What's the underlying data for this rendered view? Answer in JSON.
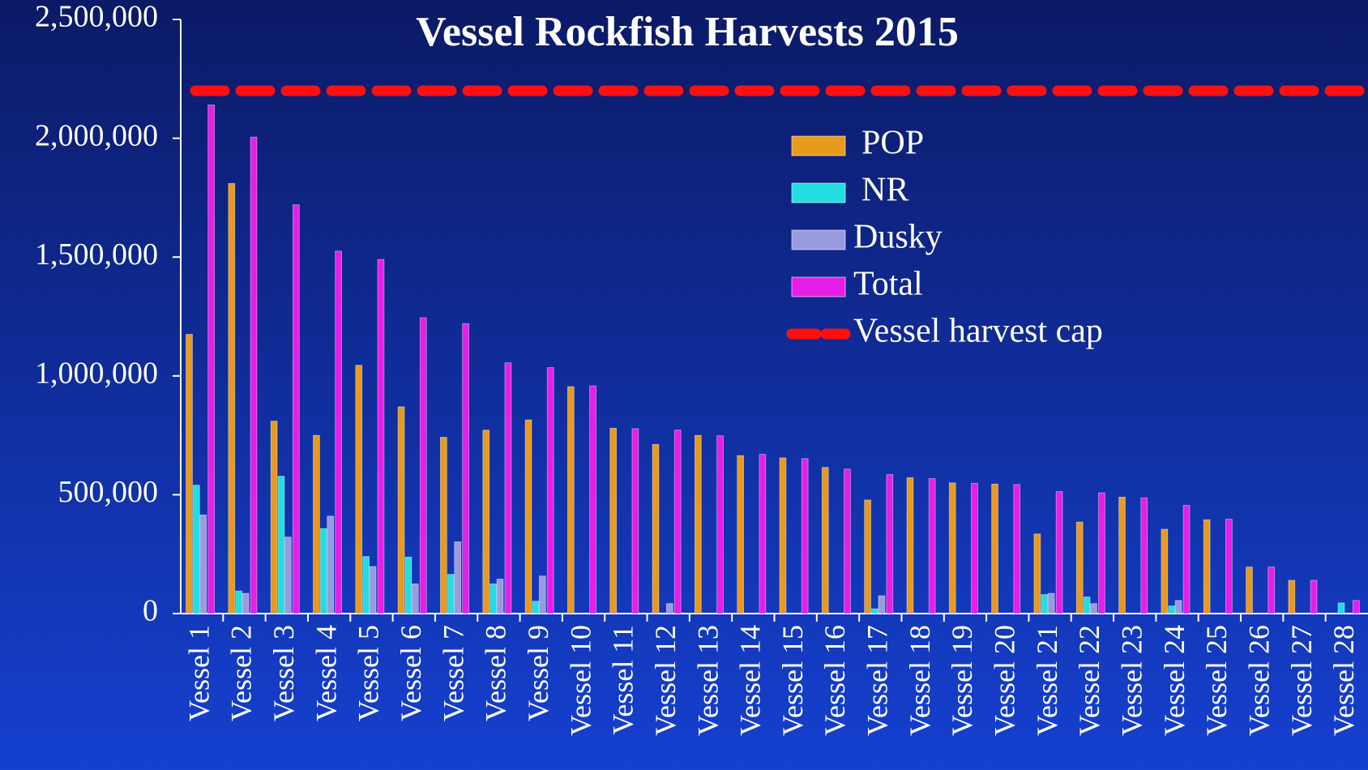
{
  "chart_data": {
    "type": "bar",
    "title": "Vessel Rockfish Harvests 2015",
    "categories": [
      "Vessel 1",
      "Vessel 2",
      "Vessel 3",
      "Vessel 4",
      "Vessel 5",
      "Vessel 6",
      "Vessel 7",
      "Vessel 8",
      "Vessel 9",
      "Vessel 10",
      "Vessel 11",
      "Vessel 12",
      "Vessel 13",
      "Vessel 14",
      "Vessel 15",
      "Vessel 16",
      "Vessel 17",
      "Vessel 18",
      "Vessel 19",
      "Vessel 20",
      "Vessel 21",
      "Vessel 22",
      "Vessel 23",
      "Vessel 24",
      "Vessel 25",
      "Vessel 26",
      "Vessel 27",
      "Vessel 28"
    ],
    "series": [
      {
        "name": "POP",
        "color": "#e89a1c",
        "values": [
          1175000,
          1810000,
          810000,
          750000,
          1045000,
          870000,
          742000,
          772000,
          815000,
          955000,
          780000,
          712000,
          750000,
          665000,
          655000,
          615000,
          478000,
          572000,
          550000,
          545000,
          335000,
          385000,
          490000,
          355000,
          395000,
          196000,
          140000,
          0
        ]
      },
      {
        "name": "NR",
        "color": "#22dede",
        "values": [
          540000,
          95000,
          578000,
          358000,
          240000,
          238000,
          165000,
          125000,
          52000,
          0,
          0,
          0,
          0,
          0,
          0,
          0,
          20000,
          0,
          0,
          0,
          80000,
          70000,
          0,
          32000,
          0,
          0,
          0,
          45000
        ]
      },
      {
        "name": "Dusky",
        "color": "#9a9ae0",
        "values": [
          415000,
          85000,
          322000,
          410000,
          198000,
          125000,
          302000,
          145000,
          158000,
          0,
          0,
          42000,
          0,
          0,
          0,
          0,
          75000,
          0,
          0,
          0,
          85000,
          42000,
          0,
          55000,
          0,
          0,
          0,
          0
        ]
      },
      {
        "name": "Total",
        "color": "#e61ee6",
        "values": [
          2140000,
          2005000,
          1720000,
          1525000,
          1490000,
          1245000,
          1220000,
          1055000,
          1035000,
          958000,
          778000,
          772000,
          748000,
          670000,
          652000,
          608000,
          585000,
          568000,
          548000,
          543000,
          513000,
          508000,
          487000,
          455000,
          397000,
          196000,
          140000,
          55000
        ]
      }
    ],
    "reference_line": {
      "name": "Vessel harvest cap",
      "value": 2200000,
      "color": "#ff1010"
    },
    "ylim": [
      0,
      2500000
    ],
    "yticks": [
      0,
      {
        "value": 500000,
        "label": "500,000"
      },
      {
        "value": 1000000,
        "label": "1,000,000"
      },
      {
        "value": 1500000,
        "label": "1,500,000"
      },
      {
        "value": 2000000,
        "label": "2,000,000"
      },
      {
        "value": 2500000,
        "label": "2,500,000"
      }
    ],
    "grid": false
  }
}
